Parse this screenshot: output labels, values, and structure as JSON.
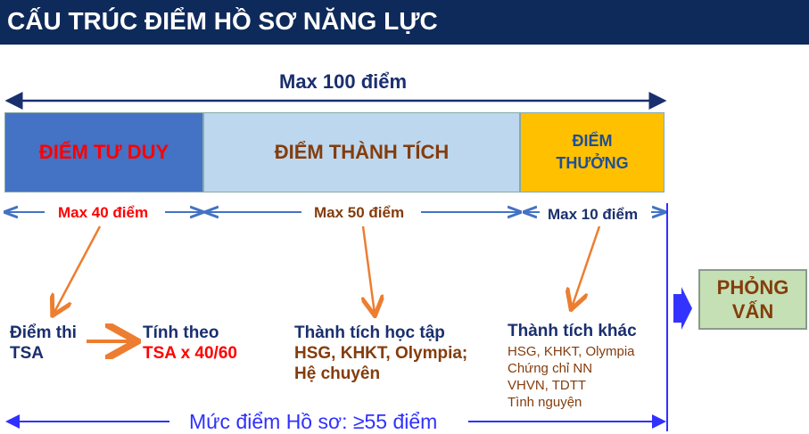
{
  "title": "CẤU TRÚC ĐIỂM HỒ SƠ NĂNG LỰC",
  "max_total": "Max 100 điểm",
  "segments": [
    {
      "label": "ĐIỂM TƯ DUY",
      "max": "Max 40 điểm",
      "color": "#4472c4",
      "text_color": "#ff0000"
    },
    {
      "label": "ĐIỂM THÀNH TÍCH",
      "max": "Max 50 điểm",
      "color": "#bdd7ee",
      "text_color": "#843c0c"
    },
    {
      "label_line1": "ĐIỂM",
      "label_line2": "THƯỞNG",
      "max": "Max 10 điểm",
      "color": "#ffc000",
      "text_color": "#1f4e99"
    }
  ],
  "details": {
    "tsa_line1": "Điểm thi",
    "tsa_line2": "TSA",
    "calc_line1": "Tính theo",
    "calc_line2": "TSA x 40/60",
    "achieve_title": "Thành tích học tập",
    "achieve_line1": "HSG, KHKT, Olympia;",
    "achieve_line2": "Hệ chuyên",
    "other_title": "Thành tích khác",
    "other_items": [
      "HSG, KHKT, Olympia",
      "Chứng chỉ NN",
      "VHVN, TDTT",
      "Tình nguyện"
    ]
  },
  "threshold": "Mức điểm Hồ sơ: ≥55 điểm",
  "interview_line1": "PHỎNG",
  "interview_line2": "VẤN"
}
